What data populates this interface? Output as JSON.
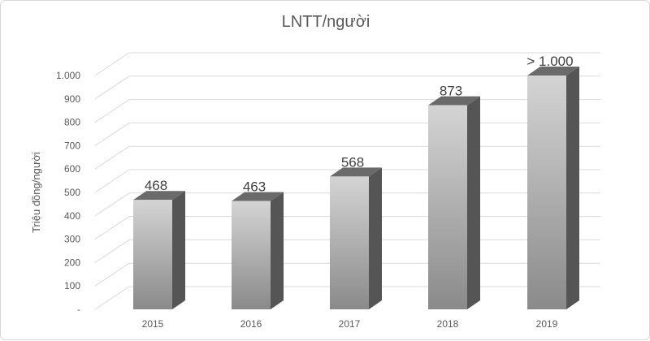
{
  "chart_data": {
    "type": "bar",
    "title": "LNTT/người",
    "ylabel": "Triệu đồng/người",
    "xlabel": "",
    "categories": [
      "2015",
      "2016",
      "2017",
      "2018",
      "2019"
    ],
    "values": [
      468,
      463,
      568,
      873,
      1000
    ],
    "data_labels": [
      "468",
      "463",
      "568",
      "873",
      "> 1.000"
    ],
    "y_ticks": [
      "-",
      "100",
      "200",
      "300",
      "400",
      "500",
      "600",
      "700",
      "800",
      "900",
      "1.000"
    ],
    "ylim": [
      0,
      1000
    ],
    "grid": true,
    "legend": "none",
    "style": "3d-column",
    "colors": {
      "bar_front_top": "#d4d4d4",
      "bar_front_bottom": "#8a8a8a",
      "bar_side": "#555555",
      "bar_top": "#6a6a6a"
    }
  }
}
